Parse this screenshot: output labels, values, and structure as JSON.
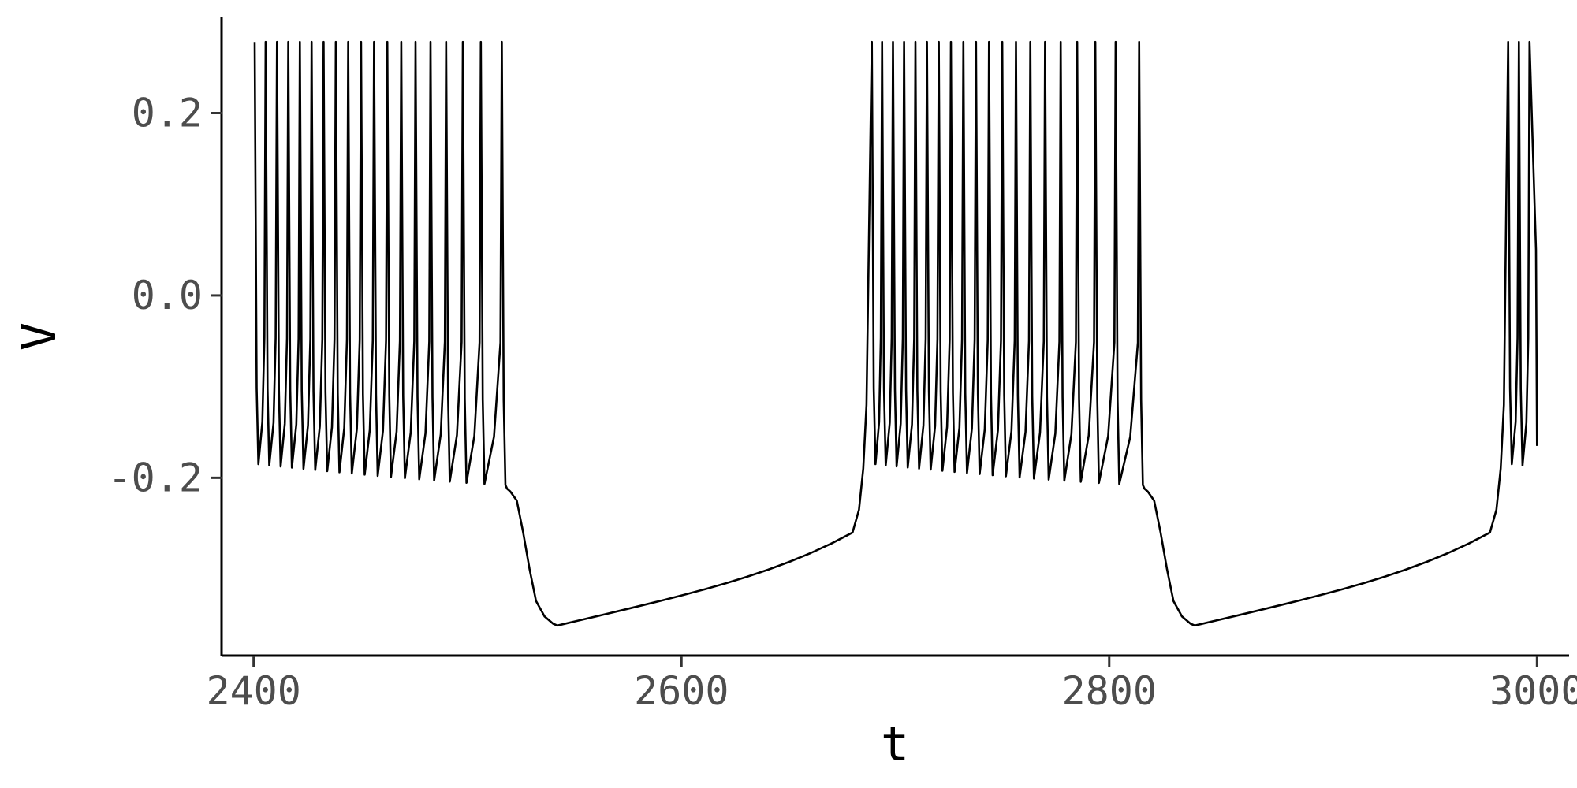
{
  "chart_data": {
    "type": "line",
    "title": "",
    "xlabel": "t",
    "ylabel": "V",
    "xlim": [
      2385,
      3015
    ],
    "ylim": [
      -0.395,
      0.305
    ],
    "x_ticks": [
      2400,
      2600,
      2800,
      3000
    ],
    "y_ticks": [
      -0.2,
      0.0,
      0.2
    ],
    "x_tick_labels": [
      "2400",
      "2600",
      "2800",
      "3000"
    ],
    "y_tick_labels": [
      "-0.2",
      "0.0",
      "0.2"
    ],
    "grid": false,
    "legend": "none",
    "line_color": "#000000",
    "series": [
      {
        "bursts": [
          {
            "spike_times": [
              2400.5,
              2405.6,
              2410.9,
              2416.2,
              2421.6,
              2427.1,
              2432.7,
              2438.4,
              2444.2,
              2450.2,
              2456.3,
              2462.5,
              2469.0,
              2475.7,
              2482.7,
              2490.0,
              2497.8,
              2506.2,
              2516.0
            ],
            "spike_peak_V": 0.278,
            "trough_V_start": -0.185,
            "trough_V_end": -0.208
          },
          {
            "spike_times": [
              2689.0,
              2693.8,
              2698.9,
              2704.1,
              2709.4,
              2714.8,
              2720.3,
              2726.0,
              2731.8,
              2737.7,
              2743.8,
              2750.0,
              2756.4,
              2763.1,
              2770.0,
              2777.3,
              2785.0,
              2793.5,
              2803.0,
              2814.0
            ],
            "spike_peak_V": 0.278,
            "trough_V_start": -0.185,
            "trough_V_end": -0.208
          },
          {
            "spike_times": [
              2986.5,
              2991.5,
              2996.5
            ],
            "spike_peak_V": 0.278,
            "trough_V_start": -0.185,
            "trough_V_end": -0.188
          }
        ],
        "quiescent_phases": [
          {
            "shoulder": [
              2520,
              -0.215
            ],
            "minimum": [
              2542,
              -0.362
            ],
            "pre_burst": [
              2680,
              -0.26
            ]
          },
          {
            "shoulder": [
              2818,
              -0.215
            ],
            "minimum": [
              2840,
              -0.362
            ],
            "pre_burst": [
              2978,
              -0.26
            ]
          }
        ],
        "end": [
          3000,
          -0.165
        ]
      }
    ]
  }
}
